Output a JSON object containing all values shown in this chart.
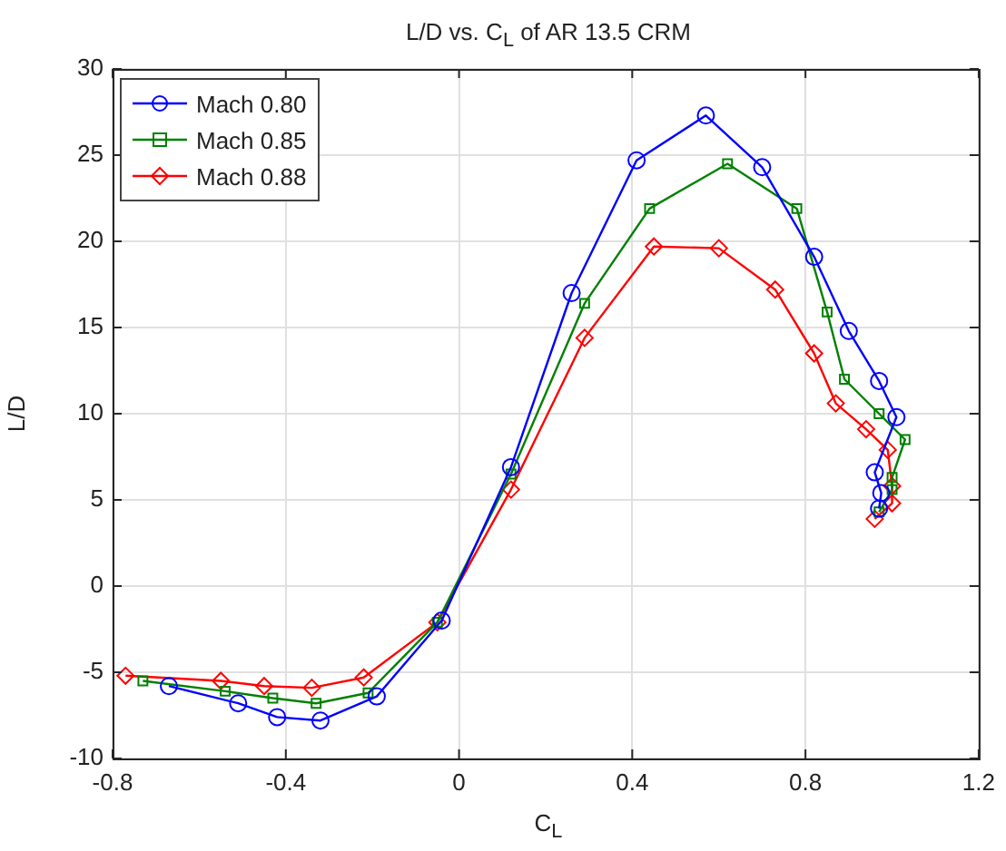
{
  "chart_data": {
    "type": "line",
    "title": "L/D vs. C$_{L}$ of AR 13.5 CRM",
    "xlabel": "C$_{L}$",
    "ylabel": "L/D",
    "xlim": [
      -0.8,
      1.2
    ],
    "xticks": [
      -0.8,
      -0.4,
      0,
      0.4,
      0.8,
      1.2
    ],
    "ylim": [
      -10,
      30
    ],
    "yticks": [
      -10,
      -5,
      0,
      5,
      10,
      15,
      20,
      25,
      30
    ],
    "grid": true,
    "legend": "top left",
    "line_style": "solid",
    "series": [
      {
        "name": "Mach 0.80",
        "color": "#0000ff",
        "marker": "circle",
        "x": [
          -0.67,
          -0.51,
          -0.42,
          -0.32,
          -0.19,
          -0.04,
          0.12,
          0.26,
          0.41,
          0.57,
          0.7,
          0.82,
          0.9,
          0.97,
          1.01,
          0.96,
          0.975,
          0.97
        ],
        "values": [
          -5.8,
          -6.8,
          -7.6,
          -7.8,
          -6.4,
          -2.0,
          6.9,
          17.0,
          24.7,
          27.3,
          24.3,
          19.1,
          14.8,
          11.9,
          9.8,
          6.6,
          5.4,
          4.5
        ]
      },
      {
        "name": "Mach 0.85",
        "color": "#008000",
        "marker": "square",
        "x": [
          -0.73,
          -0.54,
          -0.43,
          -0.33,
          -0.21,
          -0.05,
          0.12,
          0.29,
          0.44,
          0.62,
          0.78,
          0.85,
          0.89,
          0.97,
          1.03,
          1.0,
          1.0,
          0.97
        ],
        "values": [
          -5.5,
          -6.1,
          -6.5,
          -6.8,
          -6.2,
          -2.1,
          6.5,
          16.4,
          21.9,
          24.5,
          21.9,
          15.9,
          12.0,
          10.0,
          8.5,
          6.3,
          5.6,
          4.3
        ]
      },
      {
        "name": "Mach 0.88",
        "color": "#ff0000",
        "marker": "diamond",
        "x": [
          -0.77,
          -0.55,
          -0.45,
          -0.34,
          -0.22,
          -0.05,
          0.12,
          0.29,
          0.45,
          0.6,
          0.73,
          0.82,
          0.87,
          0.94,
          0.99,
          1.0,
          1.0,
          0.96
        ],
        "values": [
          -5.2,
          -5.5,
          -5.8,
          -5.9,
          -5.3,
          -2.1,
          5.6,
          14.4,
          19.7,
          19.6,
          17.2,
          13.5,
          10.6,
          9.1,
          7.9,
          5.8,
          4.8,
          3.9
        ]
      }
    ]
  }
}
